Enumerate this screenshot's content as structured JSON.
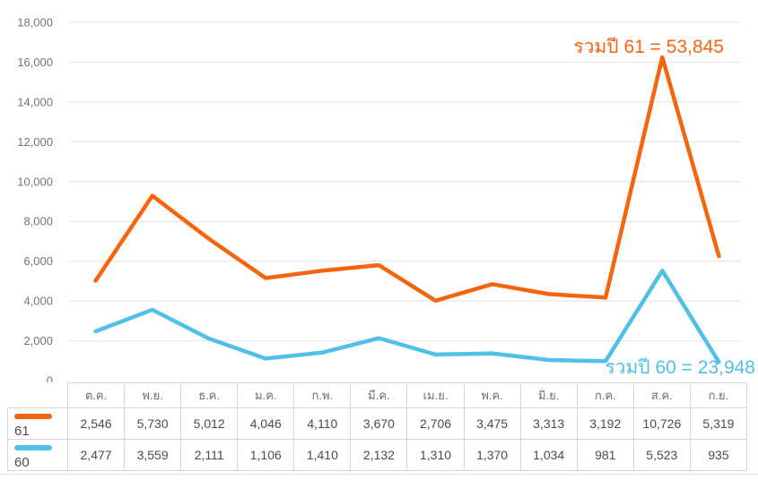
{
  "chart_data": {
    "type": "line",
    "stacking": "stacked",
    "title": "",
    "xlabel": "",
    "ylabel": "",
    "grid": true,
    "legend_position": "table-left",
    "ylim": [
      0,
      18000
    ],
    "ytick_step": 2000,
    "ytick_labels": [
      "0",
      "2,000",
      "4,000",
      "6,000",
      "8,000",
      "10,000",
      "12,000",
      "14,000",
      "16,000",
      "18,000"
    ],
    "categories": [
      "ต.ค.",
      "พ.ย.",
      "ธ.ค.",
      "ม.ค.",
      "ก.พ.",
      "มี.ค.",
      "เม.ย.",
      "พ.ค.",
      "มิ.ย.",
      "ก.ค.",
      "ส.ค.",
      "ก.ย."
    ],
    "series": [
      {
        "name": "61",
        "color": "#f6650e",
        "values": [
          2546,
          5730,
          5012,
          4046,
          4110,
          3670,
          2706,
          3475,
          3313,
          3192,
          10726,
          5319
        ],
        "total": 53845
      },
      {
        "name": "60",
        "color": "#4fc0e8",
        "values": [
          2477,
          3559,
          2111,
          1106,
          1410,
          2132,
          1310,
          1370,
          1034,
          981,
          5523,
          935
        ],
        "total": 23948
      }
    ],
    "annotations": [
      {
        "text": "รวมปี 61 = 53,845",
        "color": "#f6650e"
      },
      {
        "text": "รวมปี 60 = 23,948",
        "color": "#4fc0e8"
      }
    ]
  },
  "colors": {
    "series_61": "#f6650e",
    "series_60": "#4fc0e8",
    "grid": "#e2e2e2",
    "axis_text": "#757575",
    "table_border": "#d6d6d6",
    "table_text": "#4c4c4c",
    "month_text": "#6e6e6e",
    "background": "#ffffff"
  }
}
